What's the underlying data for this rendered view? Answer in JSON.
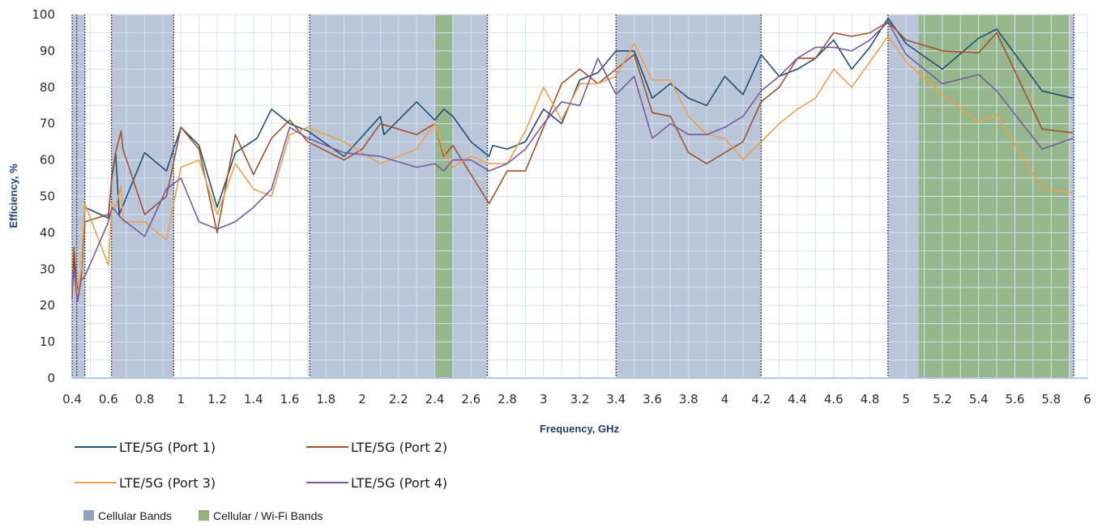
{
  "chart_data": {
    "type": "line",
    "title": "",
    "xlabel": "Frequency, GHz",
    "ylabel": "Efficiency, %",
    "xlim": [
      0.4,
      6
    ],
    "ylim": [
      0,
      100
    ],
    "x_ticks": [
      "0.4",
      "0.6",
      "0.8",
      "1",
      "1.2",
      "1.4",
      "1.6",
      "1.8",
      "2",
      "2.2",
      "2.4",
      "2.6",
      "2.8",
      "3",
      "3.2",
      "3.4",
      "3.6",
      "3.8",
      "4",
      "4.2",
      "4.4",
      "4.6",
      "4.8",
      "5",
      "5.2",
      "5.4",
      "5.6",
      "5.8",
      "6"
    ],
    "y_ticks": [
      "0",
      "10",
      "20",
      "30",
      "40",
      "50",
      "60",
      "70",
      "80",
      "90",
      "100"
    ],
    "grid": true,
    "legend_position": "bottom-left",
    "bands": [
      {
        "category": "cellular",
        "start": 0.4,
        "end": 0.47
      },
      {
        "category": "cellular",
        "start": 0.617,
        "end": 0.96
      },
      {
        "category": "cellular",
        "start": 1.71,
        "end": 2.69
      },
      {
        "category": "wifi",
        "start": 2.4,
        "end": 2.5
      },
      {
        "category": "cellular",
        "start": 3.4,
        "end": 4.2
      },
      {
        "category": "cellular",
        "start": 4.9,
        "end": 5.925
      },
      {
        "category": "wifi",
        "start": 5.07,
        "end": 5.9
      }
    ],
    "band_legend": [
      {
        "name": "Cellular Bands",
        "color": "#8ea3c2"
      },
      {
        "name": "Cellular / Wi-Fi Bands",
        "color": "#8fb37a"
      }
    ],
    "series": [
      {
        "name": "LTE/5G (Port 1)",
        "color": "#1f4e79",
        "points": [
          [
            0.4,
            25
          ],
          [
            0.41,
            33
          ],
          [
            0.42,
            28
          ],
          [
            0.43,
            24
          ],
          [
            0.45,
            28
          ],
          [
            0.47,
            47
          ],
          [
            0.6,
            44
          ],
          [
            0.62,
            56
          ],
          [
            0.64,
            62
          ],
          [
            0.66,
            45
          ],
          [
            0.8,
            62
          ],
          [
            0.92,
            57
          ],
          [
            1,
            69
          ],
          [
            1.1,
            64
          ],
          [
            1.2,
            47
          ],
          [
            1.3,
            62
          ],
          [
            1.42,
            66
          ],
          [
            1.5,
            74
          ],
          [
            1.6,
            70
          ],
          [
            1.7,
            68
          ],
          [
            1.9,
            61
          ],
          [
            2.1,
            72
          ],
          [
            2.12,
            67
          ],
          [
            2.3,
            76
          ],
          [
            2.4,
            71
          ],
          [
            2.45,
            74
          ],
          [
            2.5,
            72
          ],
          [
            2.6,
            65
          ],
          [
            2.7,
            61
          ],
          [
            2.72,
            64
          ],
          [
            2.8,
            63
          ],
          [
            2.9,
            65
          ],
          [
            3,
            74
          ],
          [
            3.1,
            70
          ],
          [
            3.2,
            82
          ],
          [
            3.3,
            84
          ],
          [
            3.4,
            90
          ],
          [
            3.5,
            90
          ],
          [
            3.6,
            77
          ],
          [
            3.7,
            81
          ],
          [
            3.8,
            77
          ],
          [
            3.9,
            75
          ],
          [
            4,
            83
          ],
          [
            4.1,
            78
          ],
          [
            4.2,
            89
          ],
          [
            4.3,
            83
          ],
          [
            4.4,
            85
          ],
          [
            4.5,
            88
          ],
          [
            4.6,
            93
          ],
          [
            4.7,
            85
          ],
          [
            4.8,
            91
          ],
          [
            4.9,
            99
          ],
          [
            5,
            92
          ],
          [
            5.2,
            85
          ],
          [
            5.4,
            93.5
          ],
          [
            5.5,
            96
          ],
          [
            5.75,
            79
          ],
          [
            5.92,
            77
          ]
        ]
      },
      {
        "name": "LTE/5G (Port 2)",
        "color": "#a0522d",
        "points": [
          [
            0.4,
            22
          ],
          [
            0.41,
            36
          ],
          [
            0.42,
            29
          ],
          [
            0.43,
            22
          ],
          [
            0.45,
            28
          ],
          [
            0.47,
            43
          ],
          [
            0.6,
            45
          ],
          [
            0.62,
            55
          ],
          [
            0.64,
            62
          ],
          [
            0.67,
            68
          ],
          [
            0.68,
            63
          ],
          [
            0.8,
            45
          ],
          [
            0.92,
            50
          ],
          [
            1,
            69
          ],
          [
            1.1,
            63
          ],
          [
            1.2,
            40
          ],
          [
            1.3,
            67
          ],
          [
            1.4,
            56
          ],
          [
            1.5,
            66
          ],
          [
            1.6,
            71
          ],
          [
            1.7,
            65
          ],
          [
            1.9,
            60
          ],
          [
            2,
            63
          ],
          [
            2.1,
            70
          ],
          [
            2.3,
            67
          ],
          [
            2.4,
            70
          ],
          [
            2.45,
            61
          ],
          [
            2.5,
            64
          ],
          [
            2.7,
            48
          ],
          [
            2.8,
            57
          ],
          [
            2.9,
            57
          ],
          [
            3,
            69
          ],
          [
            3.1,
            81
          ],
          [
            3.2,
            85
          ],
          [
            3.3,
            81
          ],
          [
            3.4,
            85
          ],
          [
            3.5,
            89
          ],
          [
            3.6,
            73
          ],
          [
            3.7,
            72
          ],
          [
            3.8,
            62
          ],
          [
            3.9,
            59
          ],
          [
            4,
            62
          ],
          [
            4.1,
            65
          ],
          [
            4.2,
            76
          ],
          [
            4.3,
            80
          ],
          [
            4.4,
            88
          ],
          [
            4.5,
            88
          ],
          [
            4.6,
            95
          ],
          [
            4.7,
            94
          ],
          [
            4.8,
            95
          ],
          [
            4.9,
            98
          ],
          [
            5,
            93
          ],
          [
            5.2,
            90
          ],
          [
            5.4,
            89.5
          ],
          [
            5.5,
            95
          ],
          [
            5.75,
            68.5
          ],
          [
            5.92,
            67.5
          ]
        ]
      },
      {
        "name": "LTE/5G (Port 3)",
        "color": "#f0a04b",
        "points": [
          [
            0.4,
            24
          ],
          [
            0.41,
            30
          ],
          [
            0.42,
            26
          ],
          [
            0.43,
            23
          ],
          [
            0.45,
            30
          ],
          [
            0.47,
            48
          ],
          [
            0.6,
            31
          ],
          [
            0.62,
            48
          ],
          [
            0.64,
            47
          ],
          [
            0.67,
            53
          ],
          [
            0.68,
            43
          ],
          [
            0.8,
            43
          ],
          [
            0.92,
            38
          ],
          [
            1,
            58
          ],
          [
            1.1,
            60
          ],
          [
            1.2,
            45
          ],
          [
            1.3,
            59
          ],
          [
            1.4,
            52
          ],
          [
            1.5,
            50
          ],
          [
            1.6,
            67
          ],
          [
            1.7,
            69
          ],
          [
            1.9,
            65
          ],
          [
            2,
            62
          ],
          [
            2.1,
            59
          ],
          [
            2.3,
            63
          ],
          [
            2.4,
            70
          ],
          [
            2.45,
            62
          ],
          [
            2.5,
            58
          ],
          [
            2.6,
            61
          ],
          [
            2.7,
            59
          ],
          [
            2.8,
            59
          ],
          [
            2.9,
            68
          ],
          [
            3,
            80
          ],
          [
            3.1,
            71
          ],
          [
            3.2,
            81
          ],
          [
            3.3,
            81
          ],
          [
            3.4,
            83
          ],
          [
            3.5,
            92
          ],
          [
            3.6,
            82
          ],
          [
            3.7,
            82
          ],
          [
            3.8,
            72
          ],
          [
            3.9,
            67
          ],
          [
            4,
            66
          ],
          [
            4.1,
            60
          ],
          [
            4.2,
            65
          ],
          [
            4.3,
            70
          ],
          [
            4.4,
            74
          ],
          [
            4.5,
            77
          ],
          [
            4.6,
            85
          ],
          [
            4.7,
            80
          ],
          [
            4.8,
            87
          ],
          [
            4.9,
            94
          ],
          [
            5,
            87
          ],
          [
            5.2,
            78
          ],
          [
            5.4,
            70.5
          ],
          [
            5.5,
            72.5
          ],
          [
            5.75,
            52
          ],
          [
            5.92,
            51
          ]
        ]
      },
      {
        "name": "LTE/5G (Port 4)",
        "color": "#7a5a9e",
        "points": [
          [
            0.4,
            24
          ],
          [
            0.41,
            30
          ],
          [
            0.42,
            25
          ],
          [
            0.43,
            21
          ],
          [
            0.45,
            27
          ],
          [
            0.47,
            28
          ],
          [
            0.6,
            43
          ],
          [
            0.62,
            47
          ],
          [
            0.64,
            46
          ],
          [
            0.67,
            44
          ],
          [
            0.8,
            39
          ],
          [
            0.92,
            52
          ],
          [
            1,
            55
          ],
          [
            1.1,
            43
          ],
          [
            1.2,
            41
          ],
          [
            1.3,
            43
          ],
          [
            1.4,
            47
          ],
          [
            1.5,
            52
          ],
          [
            1.6,
            69
          ],
          [
            1.7,
            66
          ],
          [
            1.9,
            62
          ],
          [
            2.1,
            61
          ],
          [
            2.3,
            58
          ],
          [
            2.4,
            59
          ],
          [
            2.45,
            57
          ],
          [
            2.5,
            60
          ],
          [
            2.6,
            60
          ],
          [
            2.7,
            57
          ],
          [
            2.8,
            59
          ],
          [
            2.9,
            63
          ],
          [
            3,
            70
          ],
          [
            3.1,
            76
          ],
          [
            3.2,
            75
          ],
          [
            3.3,
            88
          ],
          [
            3.4,
            78
          ],
          [
            3.5,
            83
          ],
          [
            3.6,
            66
          ],
          [
            3.7,
            70
          ],
          [
            3.8,
            67
          ],
          [
            3.9,
            67
          ],
          [
            4,
            69
          ],
          [
            4.1,
            72
          ],
          [
            4.2,
            79
          ],
          [
            4.3,
            83
          ],
          [
            4.4,
            88
          ],
          [
            4.5,
            91
          ],
          [
            4.6,
            91
          ],
          [
            4.7,
            90
          ],
          [
            4.8,
            93
          ],
          [
            4.9,
            98
          ],
          [
            5,
            89
          ],
          [
            5.2,
            81
          ],
          [
            5.4,
            83.5
          ],
          [
            5.5,
            79
          ],
          [
            5.75,
            63
          ],
          [
            5.92,
            66
          ]
        ]
      }
    ]
  }
}
